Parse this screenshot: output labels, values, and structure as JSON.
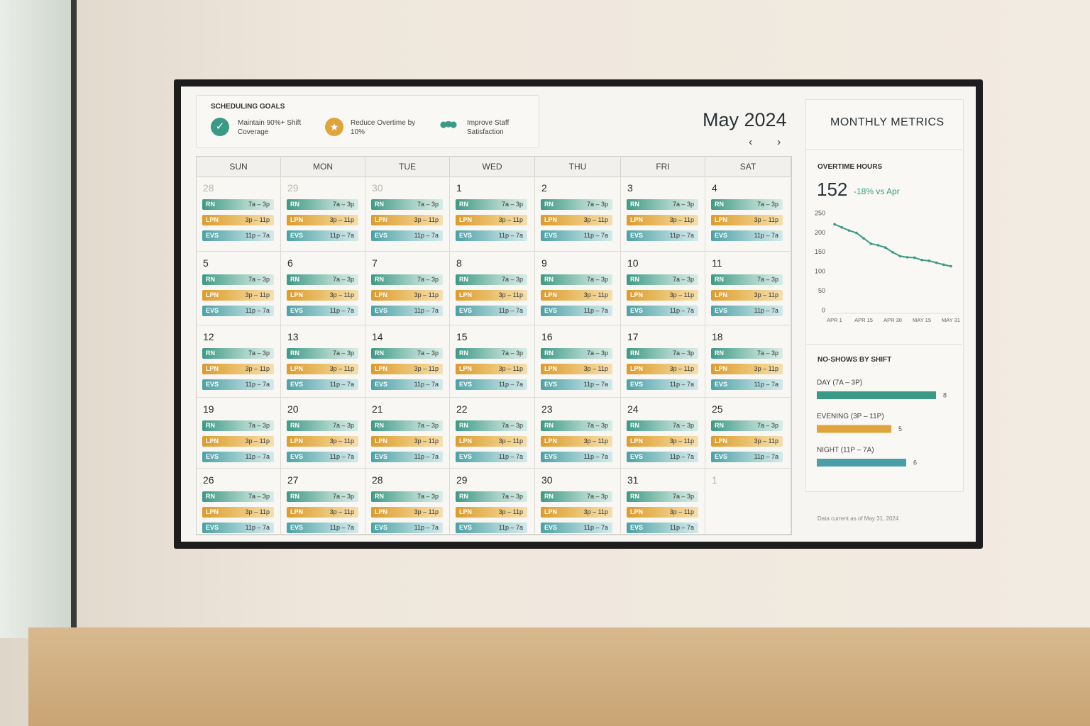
{
  "goals": {
    "title": "SCHEDULING GOALS",
    "items": [
      "Maintain 90%+ Shift Coverage",
      "Reduce Overtime by 10%",
      "Improve Staff Satisfaction"
    ]
  },
  "calendar": {
    "title": "May 2024",
    "weekdays": [
      "SUN",
      "MON",
      "TUE",
      "WED",
      "THU",
      "FRI",
      "SAT"
    ],
    "prev_month": [
      {
        "day": 28,
        "shifts": [
          {
            "role": "RN",
            "time": "7a – 3p"
          },
          {
            "role": "LPN",
            "time": "3p – 11p"
          },
          {
            "role": "EVS",
            "time": "11p – 7a"
          }
        ]
      },
      {
        "day": 29,
        "shifts": [
          {
            "role": "RN",
            "time": "7a – 3p"
          },
          {
            "role": "LPN",
            "time": "3p – 11p"
          },
          {
            "role": "EVS",
            "time": "11p – 7a"
          }
        ]
      },
      {
        "day": 30,
        "shifts": [
          {
            "role": "RN",
            "time": "7a – 3p"
          },
          {
            "role": "LPN",
            "time": "3p – 11p"
          },
          {
            "role": "EVS",
            "time": "11p – 7a"
          }
        ]
      }
    ],
    "days": [
      {
        "day": 1,
        "shifts": [
          {
            "role": "RN",
            "time": "7a – 3p"
          },
          {
            "role": "LPN",
            "time": "3p – 11p"
          },
          {
            "role": "EVS",
            "time": "11p – 7a"
          }
        ]
      },
      {
        "day": 2,
        "shifts": [
          {
            "role": "RN",
            "time": "7a – 3p"
          },
          {
            "role": "LPN",
            "time": "3p – 11p"
          },
          {
            "role": "EVS",
            "time": "11p – 7a"
          }
        ]
      },
      {
        "day": 3,
        "shifts": [
          {
            "role": "RN",
            "time": "7a – 3p"
          },
          {
            "role": "LPN",
            "time": "3p – 11p"
          },
          {
            "role": "EVS",
            "time": "11p – 7a"
          }
        ]
      },
      {
        "day": 4,
        "shifts": [
          {
            "role": "RN",
            "time": "7a – 3p"
          },
          {
            "role": "LPN",
            "time": "3p – 11p"
          },
          {
            "role": "EVS",
            "time": "11p – 7a"
          }
        ]
      },
      {
        "day": 5,
        "shifts": [
          {
            "role": "RN",
            "time": "7a – 3p"
          },
          {
            "role": "LPN",
            "time": "3p – 11p"
          },
          {
            "role": "EVS",
            "time": "11p – 7a"
          }
        ]
      },
      {
        "day": 6,
        "shifts": [
          {
            "role": "RN",
            "time": "7a – 3p"
          },
          {
            "role": "LPN",
            "time": "3p – 11p"
          },
          {
            "role": "EVS",
            "time": "11p – 7a"
          }
        ]
      },
      {
        "day": 7,
        "shifts": [
          {
            "role": "RN",
            "time": "7a – 3p"
          },
          {
            "role": "LPN",
            "time": "3p – 11p"
          },
          {
            "role": "EVS",
            "time": "11p – 7a"
          }
        ]
      },
      {
        "day": 8,
        "shifts": [
          {
            "role": "RN",
            "time": "7a – 3p"
          },
          {
            "role": "LPN",
            "time": "3p – 11p"
          },
          {
            "role": "EVS",
            "time": "11p – 7a"
          }
        ]
      },
      {
        "day": 9,
        "shifts": [
          {
            "role": "RN",
            "time": "7a – 3p"
          },
          {
            "role": "LPN",
            "time": "3p – 11p"
          },
          {
            "role": "EVS",
            "time": "11p – 7a"
          }
        ]
      },
      {
        "day": 10,
        "shifts": [
          {
            "role": "RN",
            "time": "7a – 3p"
          },
          {
            "role": "LPN",
            "time": "3p – 11p"
          },
          {
            "role": "EVS",
            "time": "11p – 7a"
          }
        ]
      },
      {
        "day": 11,
        "shifts": [
          {
            "role": "RN",
            "time": "7a – 3p"
          },
          {
            "role": "LPN",
            "time": "3p – 11p"
          },
          {
            "role": "EVS",
            "time": "11p – 7a"
          }
        ]
      },
      {
        "day": 12,
        "shifts": [
          {
            "role": "RN",
            "time": "7a – 3p"
          },
          {
            "role": "LPN",
            "time": "3p – 11p"
          },
          {
            "role": "EVS",
            "time": "11p – 7a"
          }
        ]
      },
      {
        "day": 13,
        "shifts": [
          {
            "role": "RN",
            "time": "7a – 3p"
          },
          {
            "role": "LPN",
            "time": "3p – 11p"
          },
          {
            "role": "EVS",
            "time": "11p – 7a"
          }
        ]
      },
      {
        "day": 14,
        "shifts": [
          {
            "role": "RN",
            "time": "7a – 3p"
          },
          {
            "role": "LPN",
            "time": "3p – 11p"
          },
          {
            "role": "EVS",
            "time": "11p – 7a"
          }
        ]
      },
      {
        "day": 15,
        "shifts": [
          {
            "role": "RN",
            "time": "7a – 3p"
          },
          {
            "role": "LPN",
            "time": "3p – 11p"
          },
          {
            "role": "EVS",
            "time": "11p – 7a"
          }
        ]
      },
      {
        "day": 16,
        "shifts": [
          {
            "role": "RN",
            "time": "7a – 3p"
          },
          {
            "role": "LPN",
            "time": "3p – 11p"
          },
          {
            "role": "EVS",
            "time": "11p – 7a"
          }
        ]
      },
      {
        "day": 17,
        "shifts": [
          {
            "role": "RN",
            "time": "7a – 3p"
          },
          {
            "role": "LPN",
            "time": "3p – 11p"
          },
          {
            "role": "EVS",
            "time": "11p – 7a"
          }
        ]
      },
      {
        "day": 18,
        "shifts": [
          {
            "role": "RN",
            "time": "7a – 3p"
          },
          {
            "role": "LPN",
            "time": "3p – 11p"
          },
          {
            "role": "EVS",
            "time": "11p – 7a"
          }
        ]
      },
      {
        "day": 19,
        "shifts": [
          {
            "role": "RN",
            "time": "7a – 3p"
          },
          {
            "role": "LPN",
            "time": "3p – 11p"
          },
          {
            "role": "EVS",
            "time": "11p – 7a"
          }
        ]
      },
      {
        "day": 20,
        "shifts": [
          {
            "role": "RN",
            "time": "7a – 3p"
          },
          {
            "role": "LPN",
            "time": "3p – 11p"
          },
          {
            "role": "EVS",
            "time": "11p – 7a"
          }
        ]
      },
      {
        "day": 21,
        "shifts": [
          {
            "role": "RN",
            "time": "7a – 3p"
          },
          {
            "role": "LPN",
            "time": "3p – 11p"
          },
          {
            "role": "EVS",
            "time": "11p – 7a"
          }
        ]
      },
      {
        "day": 22,
        "shifts": [
          {
            "role": "RN",
            "time": "7a – 3p"
          },
          {
            "role": "LPN",
            "time": "3p – 11p"
          },
          {
            "role": "EVS",
            "time": "11p – 7a"
          }
        ]
      },
      {
        "day": 23,
        "shifts": [
          {
            "role": "RN",
            "time": "7a – 3p"
          },
          {
            "role": "LPN",
            "time": "3p – 11p"
          },
          {
            "role": "EVS",
            "time": "11p – 7a"
          }
        ]
      },
      {
        "day": 24,
        "shifts": [
          {
            "role": "RN",
            "time": "7a – 3p"
          },
          {
            "role": "LPN",
            "time": "3p – 11p"
          },
          {
            "role": "EVS",
            "time": "11p – 7a"
          }
        ]
      },
      {
        "day": 25,
        "shifts": [
          {
            "role": "RN",
            "time": "7a – 3p"
          },
          {
            "role": "LPN",
            "time": "3p – 11p"
          },
          {
            "role": "EVS",
            "time": "11p – 7a"
          }
        ]
      },
      {
        "day": 26,
        "shifts": [
          {
            "role": "RN",
            "time": "7a – 3p"
          },
          {
            "role": "LPN",
            "time": "3p – 11p"
          },
          {
            "role": "EVS",
            "time": "11p – 7a"
          }
        ]
      },
      {
        "day": 27,
        "shifts": [
          {
            "role": "RN",
            "time": "7a – 3p"
          },
          {
            "role": "LPN",
            "time": "3p – 11p"
          },
          {
            "role": "EVS",
            "time": "11p – 7a"
          }
        ]
      },
      {
        "day": 28,
        "shifts": [
          {
            "role": "RN",
            "time": "7a – 3p"
          },
          {
            "role": "LPN",
            "time": "3p – 11p"
          },
          {
            "role": "EVS",
            "time": "11p – 7a"
          }
        ]
      },
      {
        "day": 29,
        "shifts": [
          {
            "role": "RN",
            "time": "7a – 3p"
          },
          {
            "role": "LPN",
            "time": "3p – 11p"
          },
          {
            "role": "EVS",
            "time": "11p – 7a"
          }
        ]
      },
      {
        "day": 30,
        "shifts": [
          {
            "role": "RN",
            "time": "7a – 3p"
          },
          {
            "role": "LPN",
            "time": "3p – 11p"
          },
          {
            "role": "EVS",
            "time": "11p – 7a"
          }
        ]
      },
      {
        "day": 31,
        "shifts": [
          {
            "role": "RN",
            "time": "7a – 3p"
          },
          {
            "role": "LPN",
            "time": "3p – 11p"
          },
          {
            "role": "EVS",
            "time": "11p – 7a"
          }
        ]
      }
    ],
    "next_month": [
      {
        "day": 1,
        "shifts": []
      }
    ]
  },
  "metrics": {
    "title": "MONTHLY METRICS",
    "overtime": {
      "label": "OVERTIME HOURS",
      "value": 152,
      "change": "-18% vs Apr",
      "chart_data": {
        "type": "line",
        "categories": [
          "APR 1",
          null,
          null,
          null,
          "APR 15",
          null,
          null,
          null,
          "APR 30",
          null,
          null,
          null,
          "MAY 15",
          null,
          null,
          null,
          "MAY 31"
        ],
        "values": [
          222,
          214,
          206,
          200,
          186,
          172,
          168,
          162,
          150,
          140,
          137,
          136,
          130,
          128,
          123,
          118,
          114
        ],
        "color": "#3a9a86",
        "ylim": [
          0,
          250
        ],
        "yticks": [
          0,
          50,
          100,
          150,
          200,
          250
        ],
        "grid": false
      }
    },
    "no_shows": {
      "title": "NO-SHOWS BY SHIFT",
      "chart_data": {
        "type": "bar",
        "orientation": "horizontal",
        "categories": [
          "DAY (7A – 3P)",
          "EVENING (3P – 11P)",
          "NIGHT (11P – 7A)"
        ],
        "values": [
          8,
          5,
          6
        ],
        "colors": [
          "#3a9a86",
          "#e0a53a",
          "#4a9ea8"
        ]
      }
    },
    "footer": "Data current as of May 31, 2024"
  }
}
